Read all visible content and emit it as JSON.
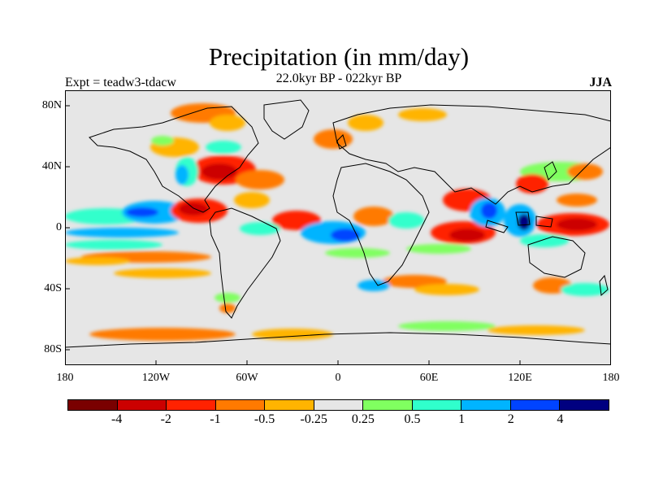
{
  "title": "Precipitation (in mm/day)",
  "subtitle": "22.0kyr BP - 022kyr BP",
  "left_label": "Expt = teadw3-tdacw",
  "right_label": "JJA",
  "y_ticks": [
    "80N",
    "40N",
    "0",
    "40S",
    "80S"
  ],
  "x_ticks": [
    "180",
    "120W",
    "60W",
    "0",
    "60E",
    "120E",
    "180"
  ],
  "colorbar": {
    "colors": [
      "#7a0000",
      "#cc0000",
      "#ff2200",
      "#ff7a00",
      "#ffb400",
      "#e6e6e6",
      "#80ff60",
      "#30ffcc",
      "#00b4ff",
      "#0044ff",
      "#000080"
    ],
    "labels": [
      "-4",
      "-2",
      "-1",
      "-0.5",
      "-0.25",
      "0.25",
      "0.5",
      "1",
      "2",
      "4"
    ]
  },
  "map_background": "#e6e6e6"
}
